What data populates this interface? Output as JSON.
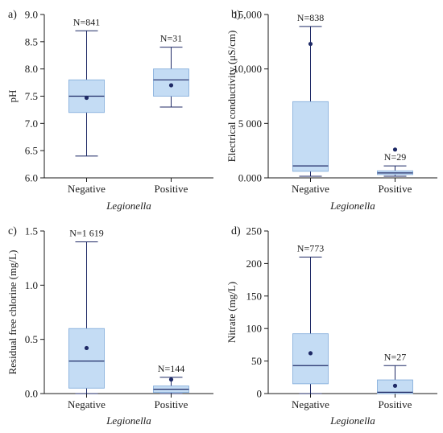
{
  "style": {
    "box_fill": "#c4dcf4",
    "box_edge": "#7ea9d9",
    "line": "#1f2a66",
    "mean": "#1f2a66",
    "axis": "#1a1a1a"
  },
  "chart_data": [
    {
      "panel": "a)",
      "type": "box",
      "ylabel": "pH",
      "xlabel": "Legionella",
      "categories": [
        "Negative",
        "Positive"
      ],
      "ylim": [
        6.0,
        9.0
      ],
      "yticks": [
        6.0,
        6.5,
        7.0,
        7.5,
        8.0,
        8.5,
        9.0
      ],
      "ytick_labels": [
        "6.0",
        "6.5",
        "7.0",
        "7.5",
        "8.0",
        "8.5",
        "9.0"
      ],
      "boxes": [
        {
          "category": "Negative",
          "n_label": "N=841",
          "whisker_low": 6.4,
          "q1": 7.2,
          "median": 7.5,
          "q3": 7.8,
          "whisker_high": 8.7,
          "mean": 7.47
        },
        {
          "category": "Positive",
          "n_label": "N=31",
          "whisker_low": 7.3,
          "q1": 7.5,
          "median": 7.8,
          "q3": 8.0,
          "whisker_high": 8.4,
          "mean": 7.7
        }
      ]
    },
    {
      "panel": "b)",
      "type": "box",
      "ylabel": "Electrical conductivity (μS/cm)",
      "xlabel": "Legionella",
      "categories": [
        "Negative",
        "Positive"
      ],
      "ylim": [
        0,
        15000
      ],
      "yticks": [
        0,
        5000,
        10000,
        15000
      ],
      "ytick_labels": [
        "0.000",
        "5 000",
        "10,000",
        "15,000"
      ],
      "boxes": [
        {
          "category": "Negative",
          "n_label": "N=838",
          "whisker_low": 150,
          "q1": 600,
          "median": 1100,
          "q3": 7000,
          "whisker_high": 13900,
          "mean": 12300
        },
        {
          "category": "Positive",
          "n_label": "N=29",
          "whisker_low": 150,
          "q1": 300,
          "median": 450,
          "q3": 650,
          "whisker_high": 1100,
          "mean": 2600
        }
      ]
    },
    {
      "panel": "c)",
      "type": "box",
      "ylabel": "Residual free chlorine (mg/L)",
      "xlabel": "Legionella",
      "categories": [
        "Negative",
        "Positive"
      ],
      "ylim": [
        0,
        1.5
      ],
      "yticks": [
        0,
        0.5,
        1.0,
        1.5
      ],
      "ytick_labels": [
        "0.0",
        "0.5",
        "1.0",
        "1.5"
      ],
      "boxes": [
        {
          "category": "Negative",
          "n_label": "N=1 619",
          "whisker_low": 0.0,
          "q1": 0.05,
          "median": 0.3,
          "q3": 0.6,
          "whisker_high": 1.4,
          "mean": 0.42
        },
        {
          "category": "Positive",
          "n_label": "N=144",
          "whisker_low": 0.0,
          "q1": 0.01,
          "median": 0.04,
          "q3": 0.07,
          "whisker_high": 0.15,
          "mean": 0.13
        }
      ]
    },
    {
      "panel": "d)",
      "type": "box",
      "ylabel": "Nitrate (mg/L)",
      "xlabel": "Legionella",
      "categories": [
        "Negative",
        "Positive"
      ],
      "ylim": [
        0,
        250
      ],
      "yticks": [
        0,
        50,
        100,
        150,
        200,
        250
      ],
      "ytick_labels": [
        "0",
        "50",
        "100",
        "150",
        "200",
        "250"
      ],
      "boxes": [
        {
          "category": "Negative",
          "n_label": "N=773",
          "whisker_low": 0,
          "q1": 15,
          "median": 43,
          "q3": 92,
          "whisker_high": 210,
          "mean": 62
        },
        {
          "category": "Positive",
          "n_label": "N=27",
          "whisker_low": 0,
          "q1": 0,
          "median": 2,
          "q3": 21,
          "whisker_high": 43,
          "mean": 12
        }
      ]
    }
  ]
}
